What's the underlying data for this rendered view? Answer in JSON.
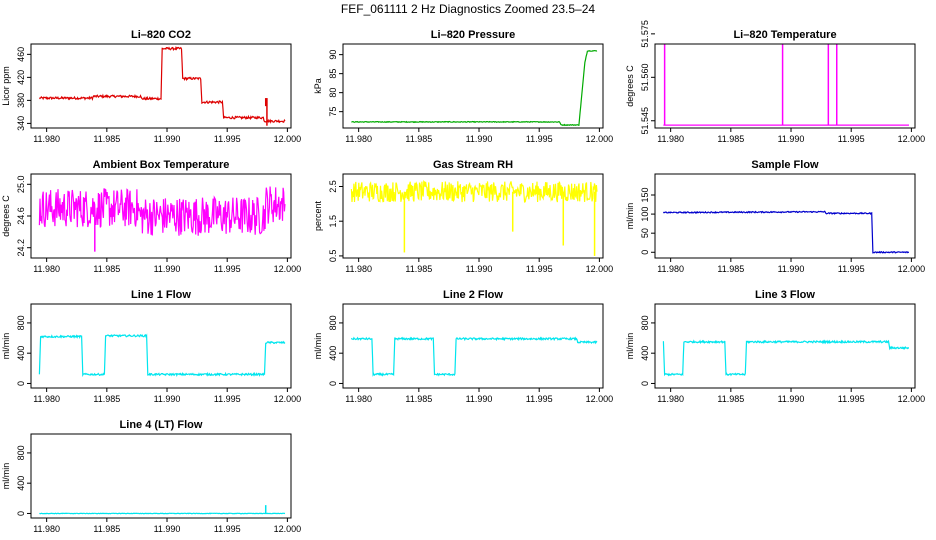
{
  "title": "FEF_061111  2 Hz Diagnostics Zoomed 23.5–24",
  "x_tick_labels": [
    "11.980",
    "11.985",
    "11.990",
    "11.995",
    "12.000"
  ],
  "chart_data": [
    {
      "type": "line",
      "title": "Li–820 CO2",
      "ylabel": "Licor ppm",
      "color": "#dd0000",
      "xlim": [
        11.9787,
        12.0003
      ],
      "ylim": [
        332,
        478
      ],
      "yticks": [
        "340",
        "380",
        "420",
        "460"
      ],
      "x": [
        11.9794,
        11.9838,
        11.9839,
        11.9878,
        11.9879,
        11.9895,
        11.9896,
        11.9912,
        11.9913,
        11.9928,
        11.9929,
        11.9946,
        11.9947,
        11.998,
        11.9981,
        11.9998
      ],
      "y": [
        384,
        384,
        387,
        387,
        383,
        383,
        470,
        470,
        418,
        418,
        377,
        377,
        350,
        350,
        344,
        344
      ],
      "noise": 2,
      "spikes": [
        {
          "x": 11.9982,
          "y": 370
        },
        {
          "x": 11.9983,
          "y": 336
        }
      ]
    },
    {
      "type": "line",
      "title": "Li–820 Pressure",
      "ylabel": "kPa",
      "color": "#00aa00",
      "xlim": [
        11.9787,
        12.0003
      ],
      "ylim": [
        70.7,
        92.8
      ],
      "yticks": [
        "75",
        "80",
        "85",
        "90"
      ],
      "x": [
        11.9794,
        11.9967,
        11.9968,
        11.9983,
        11.9988,
        11.999,
        11.9998
      ],
      "y": [
        72.3,
        72.3,
        71.5,
        71.5,
        88,
        91,
        91
      ],
      "noise": 0.1,
      "spikes": []
    },
    {
      "type": "line",
      "title": "Li–820 Temperature",
      "ylabel": "degrees C",
      "color": "#ff00ff",
      "xlim": [
        11.9787,
        12.0003
      ],
      "ylim": [
        51.5425,
        51.5715
      ],
      "yticks": [
        "51.545",
        "51.560",
        "51.575"
      ],
      "x": [
        11.9794,
        11.9998
      ],
      "y": [
        51.5435,
        51.5435
      ],
      "noise": 0,
      "spikes": [
        {
          "x": 11.9795,
          "y": 51.5715
        },
        {
          "x": 11.9893,
          "y": 51.5715
        },
        {
          "x": 11.9931,
          "y": 51.5715
        },
        {
          "x": 11.9938,
          "y": 51.5715
        }
      ]
    },
    {
      "type": "line",
      "title": "Ambient Box Temperature",
      "ylabel": "degrees C",
      "color": "#ff00ff",
      "xlim": [
        11.9787,
        12.0003
      ],
      "ylim": [
        24.07,
        25.13
      ],
      "yticks": [
        "24.2",
        "24.6",
        "25.0"
      ],
      "x": [
        11.9794,
        11.9876,
        11.9877,
        11.9981,
        11.9982,
        11.9998
      ],
      "y": [
        24.7,
        24.7,
        24.6,
        24.6,
        24.75,
        24.75
      ],
      "noise": 0.25,
      "spikes": [
        {
          "x": 11.984,
          "y": 24.15
        },
        {
          "x": 11.9912,
          "y": 24.4
        }
      ]
    },
    {
      "type": "line",
      "title": "Gas Stream RH",
      "ylabel": "percent",
      "color": "#ffff00",
      "xlim": [
        11.9787,
        12.0003
      ],
      "ylim": [
        0.44,
        2.86
      ],
      "yticks": [
        "0.5",
        "1.5",
        "2.5"
      ],
      "x": [
        11.9794,
        11.9998
      ],
      "y": [
        2.35,
        2.35
      ],
      "noise": 0.3,
      "spikes": [
        {
          "x": 11.9838,
          "y": 0.6
        },
        {
          "x": 11.9928,
          "y": 1.2
        },
        {
          "x": 11.997,
          "y": 0.8
        },
        {
          "x": 11.9996,
          "y": 0.5
        }
      ]
    },
    {
      "type": "line",
      "title": "Sample Flow",
      "ylabel": "ml/min",
      "color": "#0000cc",
      "xlim": [
        11.9787,
        12.0003
      ],
      "ylim": [
        -15,
        205
      ],
      "yticks": [
        "0",
        "50",
        "100",
        "150"
      ],
      "x": [
        11.9794,
        11.9928,
        11.9929,
        11.9967,
        11.9968,
        11.9998
      ],
      "y": [
        104,
        106,
        102,
        102,
        0,
        0
      ],
      "noise": 1.5,
      "spikes": []
    },
    {
      "type": "line",
      "title": "Line 1 Flow",
      "ylabel": "ml/min",
      "color": "#00e5ee",
      "xlim": [
        11.9787,
        12.0003
      ],
      "ylim": [
        -60,
        1050
      ],
      "yticks": [
        "0",
        "400",
        "800"
      ],
      "x": [
        11.9794,
        11.9795,
        11.9829,
        11.983,
        11.9848,
        11.9849,
        11.9883,
        11.9884,
        11.9981,
        11.9982,
        11.9998
      ],
      "y": [
        120,
        620,
        620,
        120,
        120,
        630,
        630,
        120,
        120,
        540,
        540
      ],
      "noise": 12,
      "spikes": []
    },
    {
      "type": "line",
      "title": "Line 2 Flow",
      "ylabel": "ml/min",
      "color": "#00e5ee",
      "xlim": [
        11.9787,
        12.0003
      ],
      "ylim": [
        -60,
        1050
      ],
      "yticks": [
        "0",
        "400",
        "800"
      ],
      "x": [
        11.9794,
        11.9811,
        11.9812,
        11.9829,
        11.983,
        11.9862,
        11.9863,
        11.988,
        11.9881,
        11.9981,
        11.9982,
        11.9998
      ],
      "y": [
        590,
        590,
        120,
        120,
        590,
        590,
        120,
        120,
        590,
        590,
        545,
        545
      ],
      "noise": 12,
      "spikes": []
    },
    {
      "type": "line",
      "title": "Line 3 Flow",
      "ylabel": "ml/min",
      "color": "#00e5ee",
      "xlim": [
        11.9787,
        12.0003
      ],
      "ylim": [
        -60,
        1050
      ],
      "yticks": [
        "0",
        "400",
        "800"
      ],
      "x": [
        11.9794,
        11.9795,
        11.981,
        11.9811,
        11.9845,
        11.9846,
        11.9862,
        11.9863,
        11.9981,
        11.9982,
        11.9998
      ],
      "y": [
        550,
        120,
        120,
        550,
        550,
        120,
        120,
        550,
        550,
        470,
        470
      ],
      "noise": 12,
      "spikes": []
    },
    {
      "type": "line",
      "title": "Line 4 (LT) Flow",
      "ylabel": "ml/min",
      "color": "#00e5ee",
      "xlim": [
        11.9787,
        12.0003
      ],
      "ylim": [
        -60,
        1050
      ],
      "yticks": [
        "0",
        "400",
        "800"
      ],
      "x": [
        11.9794,
        11.9998
      ],
      "y": [
        0,
        0
      ],
      "noise": 3,
      "spikes": [
        {
          "x": 11.9982,
          "y": 110
        }
      ]
    }
  ]
}
